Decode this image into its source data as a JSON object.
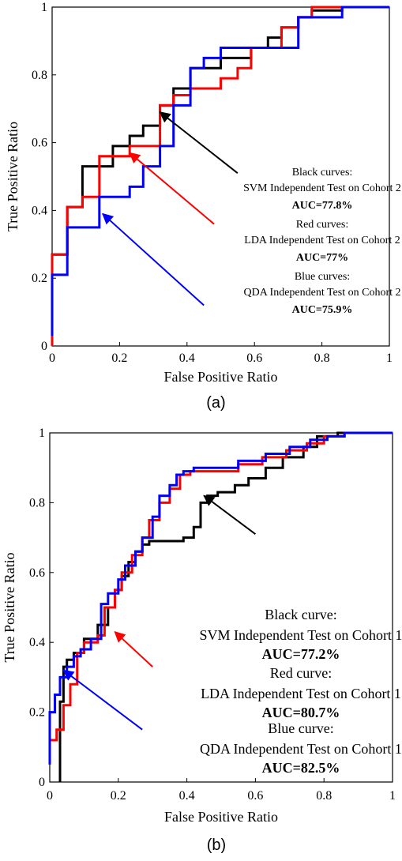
{
  "chart_data": [
    {
      "type": "line",
      "panel_label": "(a)",
      "xlabel": "False Positive Ratio",
      "ylabel": "True Positive Ratio",
      "xlim": [
        0,
        1
      ],
      "ylim": [
        0,
        1
      ],
      "xticks": [
        "0",
        "0.2",
        "0.4",
        "0.6",
        "0.8",
        "1"
      ],
      "yticks": [
        "0",
        "0.2",
        "0.4",
        "0.6",
        "0.8",
        "1"
      ],
      "grid": false,
      "series": [
        {
          "color": "#000000",
          "x": [
            0,
            0,
            0.045,
            0.045,
            0.09,
            0.09,
            0.18,
            0.18,
            0.23,
            0.23,
            0.27,
            0.27,
            0.32,
            0.32,
            0.36,
            0.36,
            0.41,
            0.41,
            0.5,
            0.5,
            0.59,
            0.59,
            0.64,
            0.64,
            0.68,
            0.68,
            0.73,
            0.73,
            0.77,
            0.77,
            0.86,
            0.86,
            1.0
          ],
          "y": [
            0,
            0.27,
            0.27,
            0.41,
            0.41,
            0.53,
            0.53,
            0.59,
            0.59,
            0.62,
            0.62,
            0.65,
            0.65,
            0.71,
            0.71,
            0.76,
            0.76,
            0.82,
            0.82,
            0.85,
            0.85,
            0.88,
            0.88,
            0.91,
            0.91,
            0.94,
            0.94,
            0.97,
            0.97,
            0.99,
            0.99,
            1.0,
            1.0
          ]
        },
        {
          "color": "#ff0000",
          "x": [
            0,
            0,
            0.045,
            0.045,
            0.09,
            0.09,
            0.14,
            0.14,
            0.23,
            0.23,
            0.32,
            0.32,
            0.36,
            0.36,
            0.41,
            0.41,
            0.5,
            0.5,
            0.55,
            0.55,
            0.59,
            0.59,
            0.68,
            0.68,
            0.73,
            0.73,
            0.77,
            0.77,
            1.0
          ],
          "y": [
            0,
            0.27,
            0.27,
            0.41,
            0.41,
            0.44,
            0.44,
            0.56,
            0.56,
            0.59,
            0.59,
            0.71,
            0.71,
            0.74,
            0.74,
            0.76,
            0.76,
            0.79,
            0.79,
            0.82,
            0.82,
            0.88,
            0.88,
            0.94,
            0.94,
            0.97,
            0.97,
            1.0,
            1.0
          ]
        },
        {
          "color": "#0000ff",
          "x": [
            0,
            0,
            0.045,
            0.045,
            0.14,
            0.14,
            0.23,
            0.23,
            0.27,
            0.27,
            0.32,
            0.32,
            0.36,
            0.36,
            0.41,
            0.41,
            0.45,
            0.45,
            0.5,
            0.5,
            0.64,
            0.64,
            0.73,
            0.73,
            0.86,
            0.86,
            1.0
          ],
          "y": [
            0.03,
            0.21,
            0.21,
            0.35,
            0.35,
            0.44,
            0.44,
            0.47,
            0.47,
            0.53,
            0.53,
            0.59,
            0.59,
            0.71,
            0.71,
            0.82,
            0.82,
            0.85,
            0.85,
            0.88,
            0.88,
            0.88,
            0.88,
            0.97,
            0.97,
            1.0,
            1.0
          ]
        }
      ],
      "annotations": [
        {
          "lines": [
            "Black curves:",
            "SVM Independent Test on Cohort 2",
            "AUC=77.8%"
          ],
          "color": "#000000",
          "arrow_to": [
            0.32,
            0.69
          ],
          "arrow_from": [
            0.55,
            0.51
          ]
        },
        {
          "lines": [
            "Red curves:",
            "LDA Independent Test on Cohort 2",
            "AUC=77%"
          ],
          "color": "#ff0000",
          "arrow_to": [
            0.23,
            0.57
          ],
          "arrow_from": [
            0.48,
            0.36
          ]
        },
        {
          "lines": [
            "Blue curves:",
            "QDA Independent Test on Cohort 2",
            "AUC=75.9%"
          ],
          "color": "#0000ff",
          "arrow_to": [
            0.15,
            0.39
          ],
          "arrow_from": [
            0.45,
            0.12
          ]
        }
      ]
    },
    {
      "type": "line",
      "panel_label": "(b)",
      "xlabel": "False Positive Ratio",
      "ylabel": "True Positive Ratio",
      "xlim": [
        0,
        1
      ],
      "ylim": [
        0,
        1
      ],
      "xticks": [
        "0",
        "0.2",
        "0.4",
        "0.6",
        "0.8",
        "1"
      ],
      "yticks": [
        "0",
        "0.2",
        "0.4",
        "0.6",
        "0.8",
        "1"
      ],
      "grid": false,
      "series": [
        {
          "color": "#000000",
          "x": [
            0.03,
            0.03,
            0.04,
            0.04,
            0.05,
            0.05,
            0.07,
            0.07,
            0.1,
            0.1,
            0.14,
            0.14,
            0.17,
            0.17,
            0.19,
            0.19,
            0.21,
            0.21,
            0.23,
            0.23,
            0.25,
            0.25,
            0.27,
            0.27,
            0.29,
            0.29,
            0.39,
            0.39,
            0.42,
            0.42,
            0.44,
            0.44,
            0.46,
            0.46,
            0.49,
            0.49,
            0.54,
            0.54,
            0.58,
            0.58,
            0.63,
            0.63,
            0.68,
            0.68,
            0.74,
            0.74,
            0.78,
            0.78,
            0.84,
            0.84,
            1.0
          ],
          "y": [
            0,
            0.23,
            0.23,
            0.33,
            0.33,
            0.35,
            0.35,
            0.37,
            0.37,
            0.41,
            0.41,
            0.45,
            0.45,
            0.5,
            0.5,
            0.55,
            0.55,
            0.59,
            0.59,
            0.63,
            0.63,
            0.66,
            0.66,
            0.68,
            0.68,
            0.69,
            0.69,
            0.7,
            0.7,
            0.73,
            0.73,
            0.8,
            0.8,
            0.82,
            0.82,
            0.83,
            0.83,
            0.85,
            0.85,
            0.87,
            0.87,
            0.9,
            0.9,
            0.93,
            0.93,
            0.96,
            0.96,
            0.99,
            0.99,
            1.0,
            1.0
          ]
        },
        {
          "color": "#ff0000",
          "x": [
            0,
            0,
            0.02,
            0.02,
            0.04,
            0.04,
            0.06,
            0.06,
            0.08,
            0.08,
            0.1,
            0.1,
            0.14,
            0.14,
            0.16,
            0.16,
            0.19,
            0.19,
            0.21,
            0.21,
            0.24,
            0.24,
            0.27,
            0.27,
            0.29,
            0.29,
            0.32,
            0.32,
            0.35,
            0.35,
            0.38,
            0.38,
            0.41,
            0.41,
            0.55,
            0.55,
            0.62,
            0.62,
            0.69,
            0.69,
            0.75,
            0.75,
            0.8,
            0.8,
            0.86,
            0.86,
            1.0
          ],
          "y": [
            0.08,
            0.12,
            0.12,
            0.15,
            0.15,
            0.22,
            0.22,
            0.28,
            0.28,
            0.37,
            0.37,
            0.4,
            0.4,
            0.42,
            0.42,
            0.5,
            0.5,
            0.55,
            0.55,
            0.6,
            0.6,
            0.65,
            0.65,
            0.7,
            0.7,
            0.75,
            0.75,
            0.8,
            0.8,
            0.84,
            0.84,
            0.88,
            0.88,
            0.89,
            0.89,
            0.91,
            0.91,
            0.93,
            0.93,
            0.95,
            0.95,
            0.97,
            0.97,
            0.99,
            0.99,
            1.0,
            1.0
          ]
        },
        {
          "color": "#0000ff",
          "x": [
            0,
            0,
            0.015,
            0.015,
            0.03,
            0.03,
            0.05,
            0.05,
            0.07,
            0.07,
            0.09,
            0.09,
            0.12,
            0.12,
            0.15,
            0.15,
            0.17,
            0.17,
            0.2,
            0.2,
            0.22,
            0.22,
            0.25,
            0.25,
            0.27,
            0.27,
            0.3,
            0.3,
            0.32,
            0.32,
            0.35,
            0.35,
            0.37,
            0.37,
            0.39,
            0.39,
            0.42,
            0.42,
            0.55,
            0.55,
            0.63,
            0.63,
            0.7,
            0.7,
            0.76,
            0.76,
            0.81,
            0.81,
            0.86,
            0.86,
            1.0
          ],
          "y": [
            0.05,
            0.2,
            0.2,
            0.25,
            0.25,
            0.3,
            0.3,
            0.33,
            0.33,
            0.36,
            0.36,
            0.38,
            0.38,
            0.41,
            0.41,
            0.51,
            0.51,
            0.54,
            0.54,
            0.58,
            0.58,
            0.62,
            0.62,
            0.66,
            0.66,
            0.7,
            0.7,
            0.76,
            0.76,
            0.82,
            0.82,
            0.85,
            0.85,
            0.88,
            0.88,
            0.89,
            0.89,
            0.9,
            0.9,
            0.92,
            0.92,
            0.94,
            0.94,
            0.96,
            0.96,
            0.98,
            0.98,
            0.99,
            0.99,
            1.0,
            1.0
          ]
        }
      ],
      "annotations": [
        {
          "lines": [
            "Black curve:",
            "SVM Independent Test on Cohort 1",
            "AUC=77.2%"
          ],
          "color": "#000000",
          "arrow_to": [
            0.45,
            0.82
          ],
          "arrow_from": [
            0.6,
            0.71
          ]
        },
        {
          "lines": [
            "Red curve:",
            "LDA Independent Test on Cohort 1",
            "AUC=80.7%"
          ],
          "color": "#ff0000",
          "arrow_to": [
            0.19,
            0.43
          ],
          "arrow_from": [
            0.3,
            0.33
          ]
        },
        {
          "lines": [
            "Blue curve:",
            "QDA Independent Test on Cohort 1",
            "AUC=82.5%"
          ],
          "color": "#0000ff",
          "arrow_to": [
            0.04,
            0.32
          ],
          "arrow_from": [
            0.27,
            0.15
          ]
        }
      ]
    }
  ]
}
